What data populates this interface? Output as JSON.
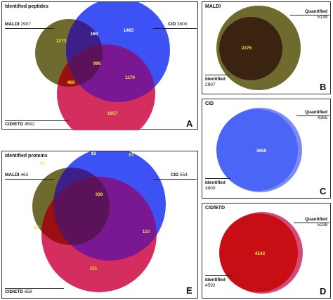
{
  "colors": {
    "maldi": "#6f6a2d",
    "cid": "#3d52f5",
    "cidetd": "#d42e5e",
    "maldi_cidetd": "#9a1010",
    "cid_cidetd": "#7a1894",
    "maldi_cid": "#3d1f8a",
    "all": "#5a1258",
    "quantified_cid": "#4b66f6",
    "quantified_cidetd": "#c80e15",
    "identified_cid": "#5d72f7",
    "identified_cidetd": "#d44a76",
    "maldi_overlap": "#3a2310",
    "label_yellow": "#f2e23a"
  },
  "panelA": {
    "title": "Identified peptides",
    "letter": "A",
    "maldi_label": "MALDI",
    "maldi_count": "2907",
    "cid_label": "CID",
    "cid_count": "3800",
    "cidetd_label": "CID/ETD",
    "cidetd_count": "4592",
    "regions": {
      "maldi_only": "1273",
      "maldi_cid": "169",
      "cid_only": "1465",
      "all_three": "996",
      "maldi_cidetd": "469",
      "cid_cidetd": "1170",
      "cidetd_only": "1957"
    }
  },
  "panelE": {
    "title": "Identified proteins",
    "letter": "E",
    "maldi_label": "MALDI",
    "maldi_count": "463",
    "cid_label": "CID",
    "cid_count": "554",
    "cidetd_label": "CID/ETD",
    "cidetd_count": "658",
    "regions": {
      "maldi_only": "47",
      "maldi_cid": "19",
      "cid_only": "87",
      "all_three": "338",
      "maldi_cidetd": "59",
      "cid_cidetd": "110",
      "cidetd_only": "151"
    }
  },
  "panelB": {
    "title": "MALDI",
    "letter": "B",
    "quantified_label": "Quantified",
    "quantified_count": "5139",
    "identified_label": "Identified",
    "identified_count": "2907",
    "overlap": "2276"
  },
  "panelC": {
    "title": "CID",
    "letter": "C",
    "quantified_label": "Quantified",
    "quantified_count": "4365",
    "identified_label": "Identified",
    "identified_count": "3800",
    "overlap": "3650"
  },
  "panelD": {
    "title": "CID/ETD",
    "letter": "D",
    "quantified_label": "Quantified",
    "quantified_count": "5238",
    "identified_label": "Identified",
    "identified_count": "4592",
    "overlap": "4542"
  }
}
